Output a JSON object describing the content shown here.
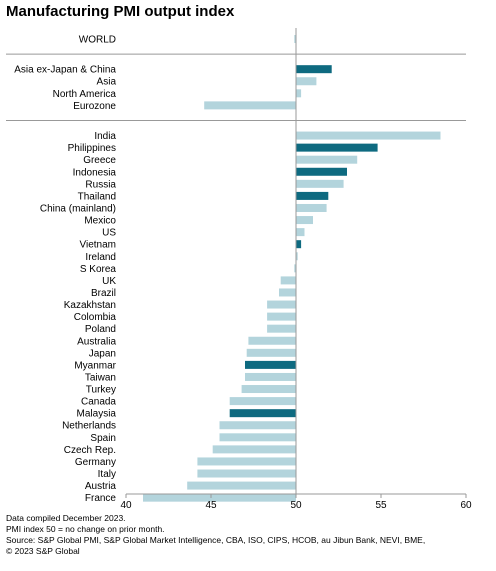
{
  "title": "Manufacturing PMI output index",
  "notes": [
    "Data compiled December 2023.",
    "PMI index 50 = no change on prior month.",
    "Source: S&P Global PMI, S&P Global Market Intelligence, CBA, ISO, CIPS, HCOB, au Jibun Bank, NEVI,  BME,",
    "© 2023 S&P Global"
  ],
  "chart_data": {
    "type": "bar",
    "orientation": "horizontal",
    "title": "Manufacturing PMI output index",
    "xlim": [
      40,
      60
    ],
    "xticks": [
      40,
      45,
      50,
      55,
      60
    ],
    "baseline": 50,
    "colors": {
      "highlight": "#0e6a80",
      "normal": "#b3d4dc",
      "axis": "#999999"
    },
    "groups": [
      {
        "items": [
          {
            "label": "WORLD",
            "value": 49.9,
            "highlight": false
          }
        ]
      },
      {
        "items": [
          {
            "label": "Asia ex-Japan & China",
            "value": 52.1,
            "highlight": true
          },
          {
            "label": "Asia",
            "value": 51.2,
            "highlight": false
          },
          {
            "label": "North America",
            "value": 50.3,
            "highlight": false
          },
          {
            "label": "Eurozone",
            "value": 44.6,
            "highlight": false
          }
        ]
      },
      {
        "items": [
          {
            "label": "India",
            "value": 58.5,
            "highlight": false
          },
          {
            "label": "Philippines",
            "value": 54.8,
            "highlight": true
          },
          {
            "label": "Greece",
            "value": 53.6,
            "highlight": false
          },
          {
            "label": "Indonesia",
            "value": 53.0,
            "highlight": true
          },
          {
            "label": "Russia",
            "value": 52.8,
            "highlight": false
          },
          {
            "label": "Thailand",
            "value": 51.9,
            "highlight": true
          },
          {
            "label": "China (mainland)",
            "value": 51.8,
            "highlight": false
          },
          {
            "label": "Mexico",
            "value": 51.0,
            "highlight": false
          },
          {
            "label": "US",
            "value": 50.5,
            "highlight": false
          },
          {
            "label": "Vietnam",
            "value": 50.3,
            "highlight": true
          },
          {
            "label": "Ireland",
            "value": 50.1,
            "highlight": false
          },
          {
            "label": "S Korea",
            "value": 49.9,
            "highlight": false
          },
          {
            "label": "UK",
            "value": 49.1,
            "highlight": false
          },
          {
            "label": "Brazil",
            "value": 49.0,
            "highlight": false
          },
          {
            "label": "Kazakhstan",
            "value": 48.3,
            "highlight": false
          },
          {
            "label": "Colombia",
            "value": 48.3,
            "highlight": false
          },
          {
            "label": "Poland",
            "value": 48.3,
            "highlight": false
          },
          {
            "label": "Australia",
            "value": 47.2,
            "highlight": false
          },
          {
            "label": "Japan",
            "value": 47.1,
            "highlight": false
          },
          {
            "label": "Myanmar",
            "value": 47.0,
            "highlight": true
          },
          {
            "label": "Taiwan",
            "value": 47.0,
            "highlight": false
          },
          {
            "label": "Turkey",
            "value": 46.8,
            "highlight": false
          },
          {
            "label": "Canada",
            "value": 46.1,
            "highlight": false
          },
          {
            "label": "Malaysia",
            "value": 46.1,
            "highlight": true
          },
          {
            "label": "Netherlands",
            "value": 45.5,
            "highlight": false
          },
          {
            "label": "Spain",
            "value": 45.5,
            "highlight": false
          },
          {
            "label": "Czech Rep.",
            "value": 45.1,
            "highlight": false
          },
          {
            "label": "Germany",
            "value": 44.2,
            "highlight": false
          },
          {
            "label": "Italy",
            "value": 44.2,
            "highlight": false
          },
          {
            "label": "Austria",
            "value": 43.6,
            "highlight": false
          },
          {
            "label": "France",
            "value": 41.0,
            "highlight": false
          }
        ]
      }
    ]
  }
}
